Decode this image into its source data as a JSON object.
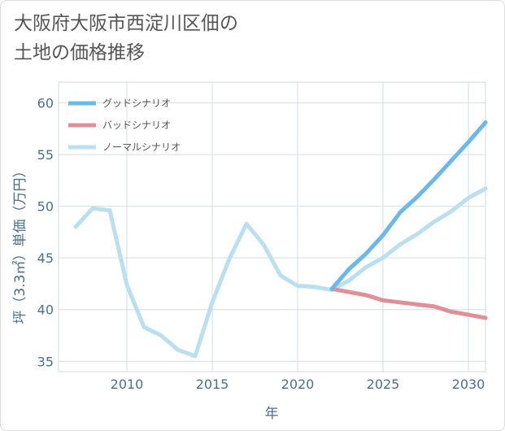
{
  "chart_data": {
    "type": "line",
    "title_line1": "大阪府大阪市西淀川区佃の",
    "title_line2": "土地の価格推移",
    "xlabel": "年",
    "ylabel": "坪（3.3㎡）単価（万円）",
    "xlim": [
      2006,
      2031
    ],
    "ylim": [
      34,
      62
    ],
    "x_ticks": [
      "2010",
      "2015",
      "2020",
      "2025",
      "2030"
    ],
    "y_ticks": [
      "35",
      "40",
      "45",
      "50",
      "55",
      "60"
    ],
    "grid": true,
    "legend_position": "top-left",
    "series": [
      {
        "name": "グッドシナリオ",
        "color": "#6cb8ea",
        "x": [
          2022,
          2023,
          2024,
          2025,
          2026,
          2027,
          2028,
          2029,
          2030,
          2031
        ],
        "y": [
          42.0,
          43.9,
          45.4,
          47.2,
          49.4,
          50.9,
          52.6,
          54.4,
          56.2,
          58.1
        ]
      },
      {
        "name": "バッドシナリオ",
        "color": "#df8f98",
        "x": [
          2022,
          2023,
          2024,
          2025,
          2026,
          2027,
          2028,
          2029,
          2030,
          2031
        ],
        "y": [
          42.0,
          41.7,
          41.4,
          40.9,
          40.7,
          40.5,
          40.3,
          39.8,
          39.5,
          39.2
        ]
      },
      {
        "name": "ノーマルシナリオ",
        "color": "#b9dff0",
        "x": [
          2007,
          2008,
          2009,
          2010,
          2011,
          2012,
          2013,
          2014,
          2015,
          2016,
          2017,
          2018,
          2019,
          2020,
          2021,
          2022,
          2023,
          2024,
          2025,
          2026,
          2027,
          2028,
          2029,
          2030,
          2031
        ],
        "y": [
          48.0,
          49.8,
          49.6,
          42.4,
          38.3,
          37.5,
          36.1,
          35.5,
          40.7,
          44.9,
          48.3,
          46.3,
          43.3,
          42.3,
          42.2,
          41.9,
          42.8,
          44.1,
          45.0,
          46.3,
          47.3,
          48.5,
          49.5,
          50.8,
          51.7
        ]
      }
    ]
  }
}
